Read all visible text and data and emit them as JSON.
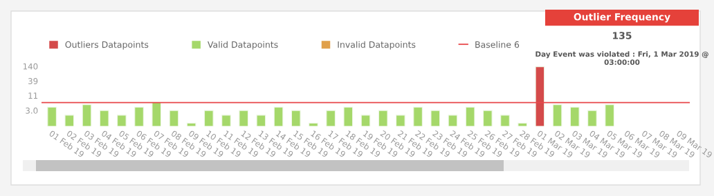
{
  "chart_data": [
    {
      "type": "bar",
      "log": true,
      "legend": "top",
      "grid": false,
      "categories": [
        "01 Feb 19",
        "02 Feb 19",
        "03 Feb 19",
        "04 Feb 19",
        "05 Feb 19",
        "06 Feb 19",
        "07 Feb 19",
        "08 Feb 19",
        "09 Feb 19",
        "10 Feb 19",
        "11 Feb 19",
        "12 Feb 19",
        "13 Feb 19",
        "14 Feb 19",
        "15 Feb 19",
        "16 Feb 19",
        "17 Feb 19",
        "18 Feb 19",
        "19 Feb 19",
        "20 Feb 19",
        "21 Feb 19",
        "22 Feb 19",
        "23 Feb 19",
        "24 Feb 19",
        "25 Feb 19",
        "26 Feb 19",
        "27 Feb 19",
        "28 Feb 19",
        "01 Mar 19",
        "02 Mar 19",
        "03 Mar 19",
        "04 Mar 19",
        "05 Mar 19",
        "06 Mar 19",
        "07 Mar 19",
        "08 Mar 19",
        "09 Mar 19"
      ],
      "series": [
        {
          "name": "Outliers Datapoints",
          "color": "#d44a4a",
          "values": [
            null,
            null,
            null,
            null,
            null,
            null,
            null,
            null,
            null,
            null,
            null,
            null,
            null,
            null,
            null,
            null,
            null,
            null,
            null,
            null,
            null,
            null,
            null,
            null,
            null,
            null,
            null,
            null,
            135,
            null,
            null,
            null,
            null,
            null,
            null,
            null,
            null
          ]
        },
        {
          "name": "Valid Datapoints",
          "color": "#a5d86a",
          "values": [
            4,
            2,
            5,
            3,
            2,
            4,
            6,
            3,
            1,
            3,
            2,
            3,
            2,
            4,
            3,
            1,
            3,
            4,
            2,
            3,
            2,
            4,
            3,
            2,
            4,
            3,
            2,
            1,
            null,
            5,
            4,
            3,
            5,
            null,
            null,
            null,
            null
          ]
        },
        {
          "name": "Invalid Datapoints",
          "color": "#e0a04a",
          "values": [
            null,
            null,
            null,
            null,
            null,
            null,
            null,
            null,
            null,
            null,
            null,
            null,
            null,
            null,
            null,
            null,
            null,
            null,
            null,
            null,
            null,
            null,
            null,
            null,
            null,
            null,
            null,
            null,
            null,
            null,
            null,
            null,
            null,
            null,
            null,
            null,
            null
          ]
        }
      ],
      "ylim": [
        0.76,
        140
      ],
      "yticks": [
        {
          "value": 3,
          "label": "3.0"
        },
        11,
        39,
        140
      ],
      "ref_lines": [
        {
          "axis": "y",
          "value": 6,
          "label": "Baseline 6",
          "color": "#e8474a"
        }
      ]
    },
    {
      "type": "other",
      "title": "Outlier Frequency",
      "annotations": [
        "135",
        "Day Event was violated : Fri, 1 Mar 2019 @ 03:00:00"
      ]
    }
  ]
}
